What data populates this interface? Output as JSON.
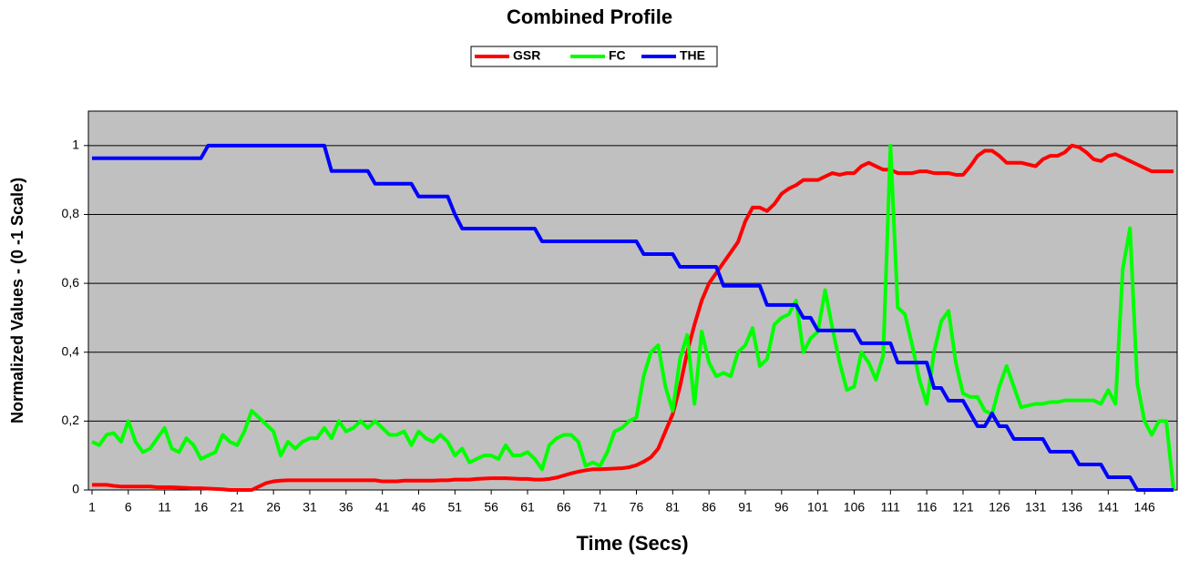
{
  "chart_data": {
    "type": "line",
    "title": "Combined Profile",
    "xlabel": "Time (Secs)",
    "ylabel": "Normalized Values - (0 -1 Scale)",
    "legend": "top",
    "grid": true,
    "background": "#c0c0c0",
    "x": [
      1,
      2,
      3,
      4,
      5,
      6,
      7,
      8,
      9,
      10,
      11,
      12,
      13,
      14,
      15,
      16,
      17,
      18,
      19,
      20,
      21,
      22,
      23,
      24,
      25,
      26,
      27,
      28,
      29,
      30,
      31,
      32,
      33,
      34,
      35,
      36,
      37,
      38,
      39,
      40,
      41,
      42,
      43,
      44,
      45,
      46,
      47,
      48,
      49,
      50,
      51,
      52,
      53,
      54,
      55,
      56,
      57,
      58,
      59,
      60,
      61,
      62,
      63,
      64,
      65,
      66,
      67,
      68,
      69,
      70,
      71,
      72,
      73,
      74,
      75,
      76,
      77,
      78,
      79,
      80,
      81,
      82,
      83,
      84,
      85,
      86,
      87,
      88,
      89,
      90,
      91,
      92,
      93,
      94,
      95,
      96,
      97,
      98,
      99,
      100,
      101,
      102,
      103,
      104,
      105,
      106,
      107,
      108,
      109,
      110,
      111,
      112,
      113,
      114,
      115,
      116,
      117,
      118,
      119,
      120,
      121,
      122,
      123,
      124,
      125,
      126,
      127,
      128,
      129,
      130,
      131,
      132,
      133,
      134,
      135,
      136,
      137,
      138,
      139,
      140,
      141,
      142,
      143,
      144,
      145,
      146,
      147,
      148,
      149,
      150
    ],
    "xlim": [
      0.5,
      150.5
    ],
    "xticks": [
      1,
      6,
      11,
      16,
      21,
      26,
      31,
      36,
      41,
      46,
      51,
      56,
      61,
      66,
      71,
      76,
      81,
      86,
      91,
      96,
      101,
      106,
      111,
      116,
      121,
      126,
      131,
      136,
      141,
      146
    ],
    "ylim": [
      0,
      1.1
    ],
    "yticks": [
      0,
      {
        "value": 0.2,
        "label": "0,2"
      },
      {
        "value": 0.4,
        "label": "0,4"
      },
      {
        "value": 0.6,
        "label": "0,6"
      },
      {
        "value": 0.8,
        "label": "0,8"
      },
      1
    ],
    "series": [
      {
        "name": "GSR",
        "color": "#ff0000",
        "values": [
          0.015,
          0.015,
          0.015,
          0.012,
          0.01,
          0.01,
          0.01,
          0.01,
          0.01,
          0.008,
          0.008,
          0.008,
          0.007,
          0.006,
          0.005,
          0.005,
          0.004,
          0.003,
          0.002,
          0,
          0,
          0,
          0,
          0.01,
          0.02,
          0.025,
          0.027,
          0.028,
          0.028,
          0.028,
          0.028,
          0.028,
          0.028,
          0.028,
          0.028,
          0.028,
          0.028,
          0.028,
          0.028,
          0.028,
          0.025,
          0.025,
          0.025,
          0.027,
          0.027,
          0.027,
          0.027,
          0.027,
          0.028,
          0.028,
          0.03,
          0.03,
          0.03,
          0.032,
          0.033,
          0.034,
          0.034,
          0.034,
          0.033,
          0.032,
          0.032,
          0.03,
          0.03,
          0.032,
          0.036,
          0.042,
          0.048,
          0.053,
          0.057,
          0.06,
          0.06,
          0.061,
          0.062,
          0.063,
          0.066,
          0.072,
          0.082,
          0.095,
          0.12,
          0.17,
          0.22,
          0.3,
          0.4,
          0.48,
          0.55,
          0.6,
          0.63,
          0.66,
          0.69,
          0.72,
          0.78,
          0.82,
          0.82,
          0.81,
          0.83,
          0.86,
          0.875,
          0.885,
          0.9,
          0.9,
          0.9,
          0.91,
          0.92,
          0.915,
          0.92,
          0.92,
          0.94,
          0.95,
          0.94,
          0.93,
          0.93,
          0.92,
          0.92,
          0.92,
          0.925,
          0.925,
          0.92,
          0.92,
          0.92,
          0.915,
          0.915,
          0.94,
          0.97,
          0.985,
          0.985,
          0.97,
          0.95,
          0.95,
          0.95,
          0.945,
          0.94,
          0.96,
          0.97,
          0.97,
          0.98,
          1.0,
          0.995,
          0.98,
          0.96,
          0.955,
          0.97,
          0.975,
          0.965,
          0.955,
          0.945,
          0.935,
          0.925,
          0.925,
          0.925,
          0.925
        ]
      },
      {
        "name": "FC",
        "color": "#00ff00",
        "values": [
          0.14,
          0.13,
          0.16,
          0.165,
          0.14,
          0.2,
          0.14,
          0.11,
          0.12,
          0.15,
          0.18,
          0.12,
          0.11,
          0.15,
          0.13,
          0.09,
          0.1,
          0.11,
          0.16,
          0.14,
          0.13,
          0.17,
          0.23,
          0.21,
          0.19,
          0.17,
          0.1,
          0.14,
          0.12,
          0.14,
          0.15,
          0.15,
          0.18,
          0.15,
          0.2,
          0.17,
          0.18,
          0.2,
          0.18,
          0.2,
          0.18,
          0.16,
          0.16,
          0.17,
          0.13,
          0.17,
          0.15,
          0.14,
          0.16,
          0.14,
          0.1,
          0.12,
          0.08,
          0.09,
          0.1,
          0.1,
          0.09,
          0.13,
          0.1,
          0.1,
          0.11,
          0.09,
          0.06,
          0.13,
          0.15,
          0.16,
          0.16,
          0.14,
          0.07,
          0.08,
          0.07,
          0.11,
          0.17,
          0.18,
          0.2,
          0.21,
          0.33,
          0.4,
          0.42,
          0.3,
          0.23,
          0.38,
          0.45,
          0.25,
          0.46,
          0.37,
          0.33,
          0.34,
          0.33,
          0.4,
          0.42,
          0.47,
          0.36,
          0.38,
          0.48,
          0.5,
          0.51,
          0.55,
          0.4,
          0.44,
          0.46,
          0.58,
          0.47,
          0.37,
          0.29,
          0.3,
          0.4,
          0.37,
          0.32,
          0.39,
          1.0,
          0.53,
          0.51,
          0.42,
          0.32,
          0.25,
          0.4,
          0.49,
          0.52,
          0.37,
          0.28,
          0.27,
          0.27,
          0.23,
          0.22,
          0.3,
          0.36,
          0.3,
          0.24,
          0.245,
          0.25,
          0.25,
          0.255,
          0.255,
          0.26,
          0.26,
          0.26,
          0.26,
          0.26,
          0.25,
          0.29,
          0.25,
          0.64,
          0.76,
          0.31,
          0.2,
          0.16,
          0.2,
          0.2,
          0.0
        ]
      },
      {
        "name": "THE",
        "color": "#0000ff",
        "values": [
          0.963,
          0.963,
          0.963,
          0.963,
          0.963,
          0.963,
          0.963,
          0.963,
          0.963,
          0.963,
          0.963,
          0.963,
          0.963,
          0.963,
          0.963,
          0.963,
          1,
          1,
          1,
          1,
          1,
          1,
          1,
          1,
          1,
          1,
          1,
          1,
          1,
          1,
          1,
          1,
          1,
          0.926,
          0.926,
          0.926,
          0.926,
          0.926,
          0.926,
          0.889,
          0.889,
          0.889,
          0.889,
          0.889,
          0.889,
          0.852,
          0.852,
          0.852,
          0.852,
          0.852,
          0.8,
          0.759,
          0.759,
          0.759,
          0.759,
          0.759,
          0.759,
          0.759,
          0.759,
          0.759,
          0.759,
          0.759,
          0.722,
          0.722,
          0.722,
          0.722,
          0.722,
          0.722,
          0.722,
          0.722,
          0.722,
          0.722,
          0.722,
          0.722,
          0.722,
          0.722,
          0.685,
          0.685,
          0.685,
          0.685,
          0.685,
          0.648,
          0.648,
          0.648,
          0.648,
          0.648,
          0.648,
          0.593,
          0.593,
          0.593,
          0.593,
          0.593,
          0.593,
          0.537,
          0.537,
          0.537,
          0.537,
          0.537,
          0.5,
          0.5,
          0.463,
          0.463,
          0.463,
          0.463,
          0.463,
          0.463,
          0.426,
          0.426,
          0.426,
          0.426,
          0.426,
          0.37,
          0.37,
          0.37,
          0.37,
          0.37,
          0.296,
          0.296,
          0.259,
          0.259,
          0.259,
          0.222,
          0.185,
          0.185,
          0.222,
          0.185,
          0.185,
          0.148,
          0.148,
          0.148,
          0.148,
          0.148,
          0.111,
          0.111,
          0.111,
          0.111,
          0.074,
          0.074,
          0.074,
          0.074,
          0.037,
          0.037,
          0.037,
          0.037,
          0,
          0,
          0,
          0,
          0,
          0
        ]
      }
    ]
  }
}
